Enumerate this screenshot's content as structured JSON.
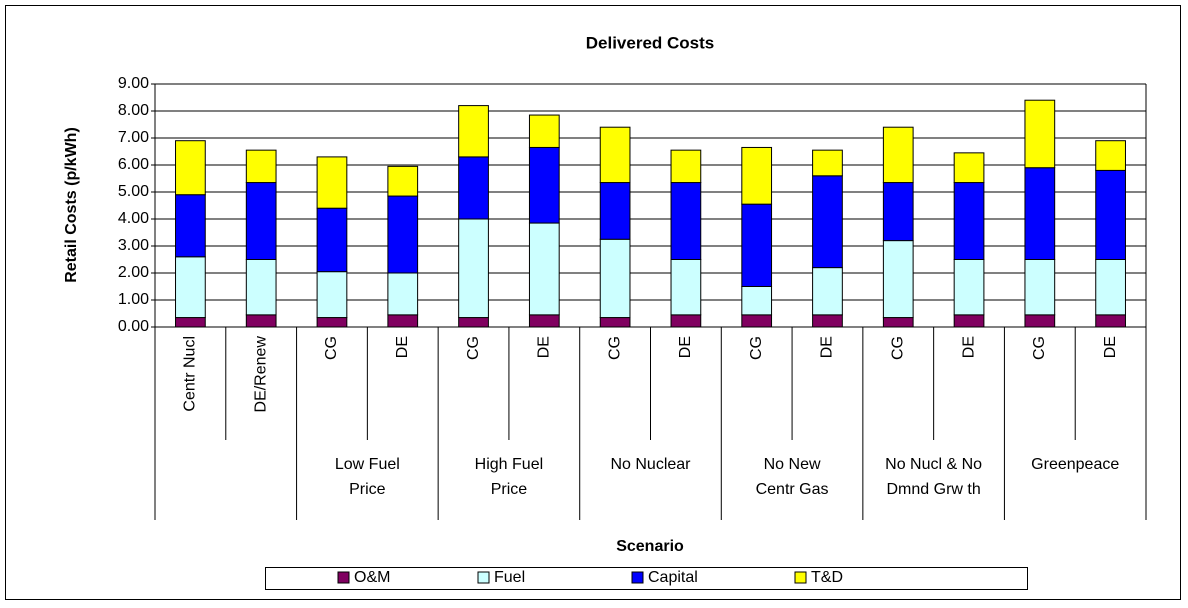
{
  "chart_data": {
    "type": "stacked_bar",
    "title": "Delivered Costs",
    "y_label": "Retail Costs (p/kWh)",
    "x_label": "Scenario",
    "categories": [
      "Centr Nucl",
      "DE/Renew",
      "CG",
      "DE",
      "CG",
      "DE",
      "CG",
      "DE",
      "CG",
      "DE",
      "CG",
      "DE",
      "CG",
      "DE"
    ],
    "groups": [
      null,
      null,
      "Low  Fuel\nPrice",
      "Low  Fuel\nPrice",
      "High Fuel\nPrice",
      "High Fuel\nPrice",
      "No Nuclear",
      "No Nuclear",
      "No New\nCentr Gas",
      "No New\nCentr Gas",
      "No Nucl & No\nDmnd Grw th",
      "No Nucl & No\nDmnd Grw th",
      "Greenpeace",
      "Greenpeace"
    ],
    "series": [
      {
        "name": "O&M",
        "color": "#800060",
        "values": [
          0.35,
          0.45,
          0.35,
          0.45,
          0.35,
          0.45,
          0.35,
          0.45,
          0.45,
          0.45,
          0.35,
          0.45,
          0.45,
          0.45
        ]
      },
      {
        "name": "Fuel",
        "color": "#ccffff",
        "values": [
          2.25,
          2.05,
          1.7,
          1.55,
          3.65,
          3.4,
          2.9,
          2.05,
          1.05,
          1.75,
          2.85,
          2.05,
          2.05,
          2.05
        ]
      },
      {
        "name": "Capital",
        "color": "#0000ff",
        "values": [
          2.3,
          2.85,
          2.35,
          2.85,
          2.3,
          2.8,
          2.1,
          2.85,
          3.05,
          3.4,
          2.15,
          2.85,
          3.4,
          3.3
        ]
      },
      {
        "name": "T&D",
        "color": "#ffff00",
        "values": [
          2.0,
          1.2,
          1.9,
          1.1,
          1.9,
          1.2,
          2.05,
          1.2,
          2.1,
          0.95,
          2.05,
          1.1,
          2.5,
          1.1
        ]
      }
    ],
    "ylim": [
      0,
      9
    ],
    "yticks": [
      {
        "value": 0,
        "label": "0.00"
      },
      {
        "value": 1,
        "label": "1.00"
      },
      {
        "value": 2,
        "label": "2.00"
      },
      {
        "value": 3,
        "label": "3.00"
      },
      {
        "value": 4,
        "label": "4.00"
      },
      {
        "value": 5,
        "label": "5.00"
      },
      {
        "value": 6,
        "label": "6.00"
      },
      {
        "value": 7,
        "label": "7.00"
      },
      {
        "value": 8,
        "label": "8.00"
      },
      {
        "value": 9,
        "label": "9.00"
      }
    ],
    "grid": true,
    "legend": "bottom"
  }
}
